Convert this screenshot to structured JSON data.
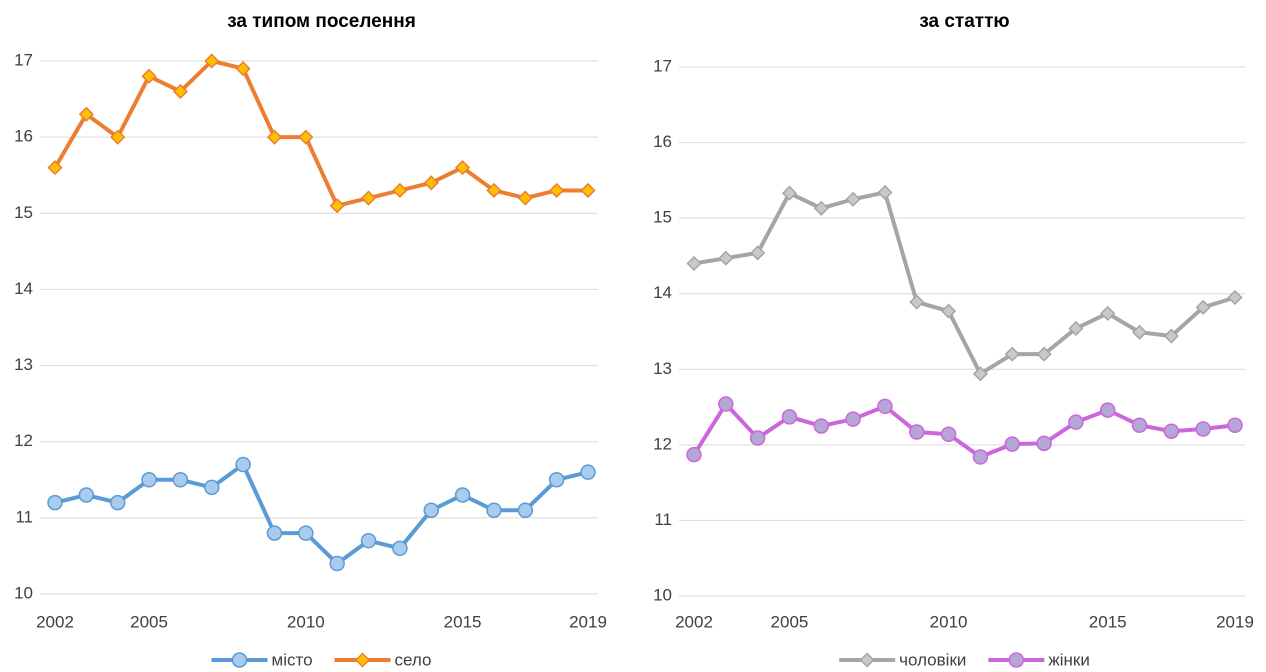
{
  "chart_data": [
    {
      "type": "line",
      "title": "за типом поселення",
      "x": [
        2002,
        2003,
        2004,
        2005,
        2006,
        2007,
        2008,
        2009,
        2010,
        2011,
        2012,
        2013,
        2014,
        2015,
        2016,
        2017,
        2018,
        2019
      ],
      "series": [
        {
          "name": "місто",
          "color": "#5b9bd5",
          "marker": "circle",
          "marker_fill": "#a9cbee",
          "values": [
            11.2,
            11.3,
            11.2,
            11.5,
            11.5,
            11.4,
            11.7,
            10.8,
            10.8,
            10.4,
            10.7,
            10.6,
            11.1,
            11.3,
            11.1,
            11.1,
            11.5,
            11.6
          ]
        },
        {
          "name": "село",
          "color": "#ed7d31",
          "marker": "diamond",
          "marker_fill": "#ffc000",
          "values": [
            15.6,
            16.3,
            16.0,
            16.8,
            16.6,
            17.0,
            16.9,
            16.0,
            16.0,
            15.1,
            15.2,
            15.3,
            15.4,
            15.6,
            15.3,
            15.2,
            15.3,
            15.3
          ]
        }
      ],
      "xlim": [
        2002,
        2019
      ],
      "xticks": [
        2002,
        2005,
        2010,
        2015,
        2019
      ],
      "ylim": [
        10,
        17
      ],
      "yticks": [
        10,
        11,
        12,
        13,
        14,
        15,
        16,
        17
      ],
      "grid": true,
      "legend": "bottom"
    },
    {
      "type": "line",
      "title": "за статтю",
      "x": [
        2002,
        2003,
        2004,
        2005,
        2006,
        2007,
        2008,
        2009,
        2010,
        2011,
        2012,
        2013,
        2014,
        2015,
        2016,
        2017,
        2018,
        2019
      ],
      "series": [
        {
          "name": "чоловіки",
          "color": "#a5a5a5",
          "marker": "diamond",
          "marker_fill": "#c9c9c9",
          "values": [
            14.4,
            14.47,
            14.54,
            15.33,
            15.13,
            15.25,
            15.34,
            13.89,
            13.77,
            12.94,
            13.2,
            13.2,
            13.54,
            13.74,
            13.49,
            13.44,
            13.82,
            13.95
          ]
        },
        {
          "name": "жінки",
          "color": "#cc66dd",
          "marker": "circle",
          "marker_fill": "#b4a7d6",
          "values": [
            11.87,
            12.54,
            12.09,
            12.37,
            12.25,
            12.34,
            12.51,
            12.17,
            12.14,
            11.84,
            12.01,
            12.02,
            12.3,
            12.46,
            12.26,
            12.18,
            12.21,
            12.26
          ]
        }
      ],
      "xlim": [
        2002,
        2019
      ],
      "xticks": [
        2002,
        2005,
        2010,
        2015,
        2019
      ],
      "ylim": [
        10,
        17
      ],
      "yticks": [
        10,
        11,
        12,
        13,
        14,
        15,
        16,
        17
      ],
      "grid": true,
      "legend": "bottom"
    }
  ]
}
